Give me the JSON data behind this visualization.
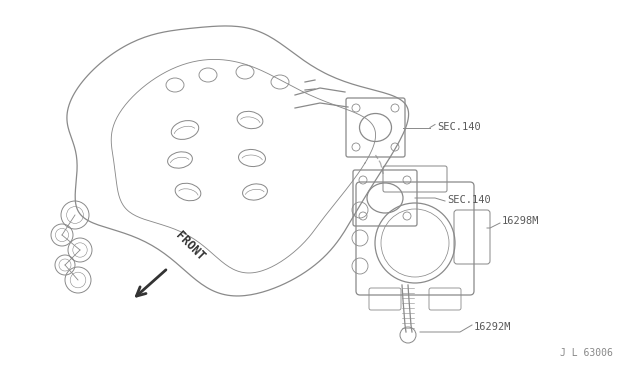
{
  "bg_color": "#ffffff",
  "line_color": "#8a8a8a",
  "label_color": "#5a5a5a",
  "lw": 0.9,
  "labels": {
    "sec140_top": "SEC.140",
    "sec140_mid": "SEC.140",
    "part_16298m": "16298M",
    "part_16292m": "16292M",
    "front_text": "FRONT"
  },
  "footnote": "J L 63006",
  "font_size": 7.5,
  "footnote_size": 7
}
